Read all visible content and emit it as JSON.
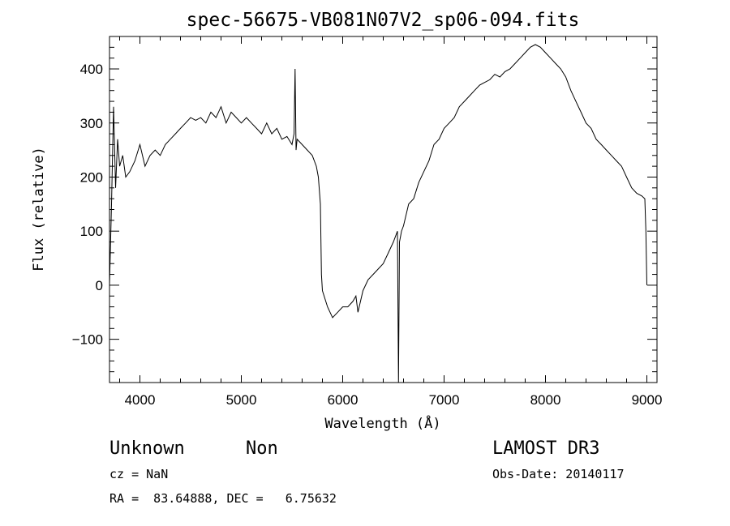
{
  "chart_data": {
    "type": "line",
    "title": "spec-56675-VB081N07V2_sp06-094.fits",
    "xlabel": "Wavelength (Å)",
    "ylabel": "Flux (relative)",
    "xlim": [
      3700,
      9100
    ],
    "ylim": [
      -180,
      460
    ],
    "x_ticks": [
      4000,
      5000,
      6000,
      7000,
      8000,
      9000
    ],
    "y_ticks": [
      -100,
      0,
      100,
      200,
      300,
      400
    ],
    "x_tick_labels": [
      "4000",
      "5000",
      "6000",
      "7000",
      "8000",
      "9000"
    ],
    "y_tick_labels": [
      "−100",
      "0",
      "100",
      "200",
      "300",
      "400"
    ],
    "grid": false,
    "line_color": "#000000",
    "series": [
      {
        "x": [
          3700,
          3720,
          3740,
          3760,
          3780,
          3800,
          3830,
          3860,
          3900,
          3950,
          4000,
          4050,
          4100,
          4150,
          4200,
          4250,
          4300,
          4350,
          4400,
          4450,
          4500,
          4550,
          4600,
          4650,
          4700,
          4750,
          4800,
          4850,
          4900,
          4950,
          5000,
          5050,
          5100,
          5150,
          5200,
          5250,
          5300,
          5350,
          5400,
          5450,
          5500,
          5520,
          5530,
          5540,
          5550,
          5600,
          5650,
          5700,
          5740,
          5760,
          5780,
          5790,
          5800,
          5850,
          5900,
          5950,
          6000,
          6050,
          6100,
          6130,
          6150,
          6200,
          6250,
          6300,
          6350,
          6400,
          6450,
          6500,
          6540,
          6550,
          6560,
          6570,
          6580,
          6600,
          6650,
          6700,
          6750,
          6800,
          6850,
          6900,
          6950,
          7000,
          7050,
          7100,
          7150,
          7200,
          7250,
          7300,
          7350,
          7400,
          7450,
          7500,
          7550,
          7600,
          7650,
          7700,
          7750,
          7800,
          7850,
          7900,
          7950,
          8000,
          8050,
          8100,
          8150,
          8200,
          8250,
          8300,
          8350,
          8400,
          8450,
          8500,
          8550,
          8600,
          8650,
          8700,
          8750,
          8800,
          8850,
          8900,
          8950,
          8980,
          8990,
          9000
        ],
        "y": [
          0,
          150,
          330,
          180,
          270,
          220,
          240,
          200,
          210,
          230,
          260,
          220,
          240,
          250,
          240,
          260,
          270,
          280,
          290,
          300,
          310,
          305,
          310,
          300,
          320,
          310,
          330,
          300,
          320,
          310,
          300,
          310,
          300,
          290,
          280,
          300,
          280,
          290,
          270,
          275,
          260,
          280,
          400,
          250,
          270,
          260,
          250,
          240,
          220,
          200,
          150,
          20,
          -10,
          -40,
          -60,
          -50,
          -40,
          -40,
          -30,
          -20,
          -50,
          -10,
          10,
          20,
          30,
          40,
          60,
          80,
          100,
          -180,
          80,
          90,
          100,
          110,
          150,
          160,
          190,
          210,
          230,
          260,
          270,
          290,
          300,
          310,
          330,
          340,
          350,
          360,
          370,
          375,
          380,
          390,
          385,
          395,
          400,
          410,
          420,
          430,
          440,
          445,
          440,
          430,
          420,
          410,
          400,
          385,
          360,
          340,
          320,
          300,
          290,
          270,
          260,
          250,
          240,
          230,
          220,
          200,
          180,
          170,
          165,
          160,
          100,
          0
        ]
      }
    ],
    "annotations": {
      "object": "Unknown",
      "class": "Non",
      "survey": "LAMOST DR3",
      "cz": "cz = NaN",
      "obs_date": "Obs-Date: 20140117",
      "coords": "RA =  83.64888, DEC =   6.75632"
    }
  }
}
